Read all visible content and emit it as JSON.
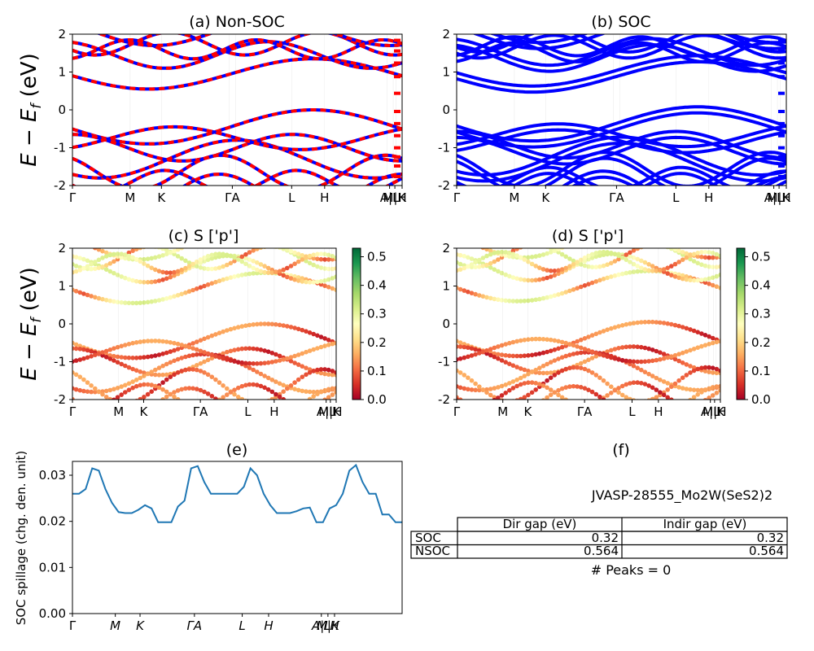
{
  "figure": {
    "ylabel_bands": "E − E",
    "ylabel_sub": "f",
    "ylabel_unit": " (eV)",
    "ylabel_spillage": "SOC spillage (chg. den. unit)"
  },
  "kpath_labels": [
    "Γ",
    "M",
    "K",
    "ΓA",
    "L",
    "H",
    "A|L",
    "M|H",
    "K"
  ],
  "spillage_kpath_labels": [
    "Γ",
    "M",
    "K",
    "ΓA",
    "L",
    "H",
    "A|L",
    "M|K",
    "H"
  ],
  "colors": {
    "nsoc_up": "#0000ff",
    "nsoc_dn": "#ff0000",
    "soc": "#0000ff",
    "spillage": "#1f77b4",
    "colormap": [
      "#a50026",
      "#d73027",
      "#f46d43",
      "#fdae61",
      "#fee08b",
      "#ffffbf",
      "#d9ef8b",
      "#a6d96a",
      "#66bd63",
      "#1a9850",
      "#006837"
    ]
  },
  "chart_data": [
    {
      "id": "a",
      "type": "line",
      "title": "(a) Non-SOC",
      "ylim": [
        -2,
        2
      ],
      "yticks": [
        -2,
        -1,
        0,
        1,
        2
      ],
      "bands_vb": [
        [
          -0.42,
          -0.62,
          -0.85,
          -1.05
        ],
        [
          -0.9,
          -1.05,
          -1.3,
          -1.55
        ],
        [
          -1.0,
          -1.15,
          -1.45,
          -1.7
        ],
        [
          -1.3,
          -1.5,
          -1.7,
          -1.95
        ]
      ],
      "bands_cb": [
        [
          0.55,
          0.75,
          1.0
        ],
        [
          1.15,
          1.3,
          1.6
        ],
        [
          1.5,
          1.65,
          1.85
        ],
        [
          1.75,
          1.85,
          1.95
        ]
      ]
    },
    {
      "id": "b",
      "type": "line",
      "title": "(b) SOC",
      "ylim": [
        -2,
        2
      ],
      "yticks": [
        -2,
        -1,
        0,
        1,
        2
      ]
    },
    {
      "id": "c",
      "type": "scatter",
      "title": "(c)  S ['p']",
      "ylim": [
        -2,
        2
      ],
      "yticks": [
        -2,
        -1,
        0,
        1,
        2
      ],
      "colorbar": {
        "range": [
          0.0,
          0.53
        ],
        "ticks": [
          0.0,
          0.1,
          0.2,
          0.3,
          0.4,
          0.5
        ]
      }
    },
    {
      "id": "d",
      "type": "scatter",
      "title": "(d) S ['p']",
      "ylim": [
        -2,
        2
      ],
      "yticks": [
        -2,
        -1,
        0,
        1,
        2
      ],
      "colorbar": {
        "range": [
          0.0,
          0.53
        ],
        "ticks": [
          0.0,
          0.1,
          0.2,
          0.3,
          0.4,
          0.5
        ]
      }
    },
    {
      "id": "e",
      "type": "line",
      "title": "(e)",
      "ylabel": "SOC spillage (chg. den. unit)",
      "ylim": [
        0,
        0.033
      ],
      "yticks": [
        0.0,
        0.01,
        0.02,
        0.03
      ],
      "series": [
        {
          "x": [
            0,
            0.02,
            0.04,
            0.06,
            0.08,
            0.1,
            0.12,
            0.14,
            0.16,
            0.18,
            0.2,
            0.22,
            0.24,
            0.26,
            0.28,
            0.3,
            0.32,
            0.34,
            0.36,
            0.38,
            0.4,
            0.42,
            0.44,
            0.46,
            0.48,
            0.5,
            0.52,
            0.54,
            0.56,
            0.58,
            0.6,
            0.62,
            0.64,
            0.66,
            0.68,
            0.7,
            0.72,
            0.74,
            0.76,
            0.78,
            0.8,
            0.82,
            0.84,
            0.86,
            0.88,
            0.9,
            0.92,
            0.94,
            0.96,
            0.98,
            1.0
          ],
          "y": [
            0.026,
            0.026,
            0.027,
            0.0315,
            0.031,
            0.027,
            0.024,
            0.022,
            0.0218,
            0.0218,
            0.0225,
            0.0235,
            0.0228,
            0.0198,
            0.0198,
            0.0198,
            0.0232,
            0.0245,
            0.0315,
            0.032,
            0.0285,
            0.026,
            0.026,
            0.026,
            0.026,
            0.026,
            0.0275,
            0.0315,
            0.03,
            0.026,
            0.0235,
            0.0218,
            0.0218,
            0.0218,
            0.0222,
            0.0228,
            0.023,
            0.0198,
            0.0198,
            0.0228,
            0.0235,
            0.026,
            0.031,
            0.0322,
            0.0285,
            0.026,
            0.026,
            0.0215,
            0.0215,
            0.0198,
            0.0198
          ]
        }
      ]
    },
    {
      "id": "f",
      "type": "table",
      "title": "(f)",
      "caption": "JVASP-28555_Mo2W(SeS2)2",
      "header": [
        "",
        "Dir gap (eV)",
        "Indir gap (eV)"
      ],
      "rows": [
        [
          "SOC",
          "0.32",
          "0.32"
        ],
        [
          "NSOC",
          "0.564",
          "0.564"
        ]
      ],
      "footer": "# Peaks = 0"
    }
  ]
}
